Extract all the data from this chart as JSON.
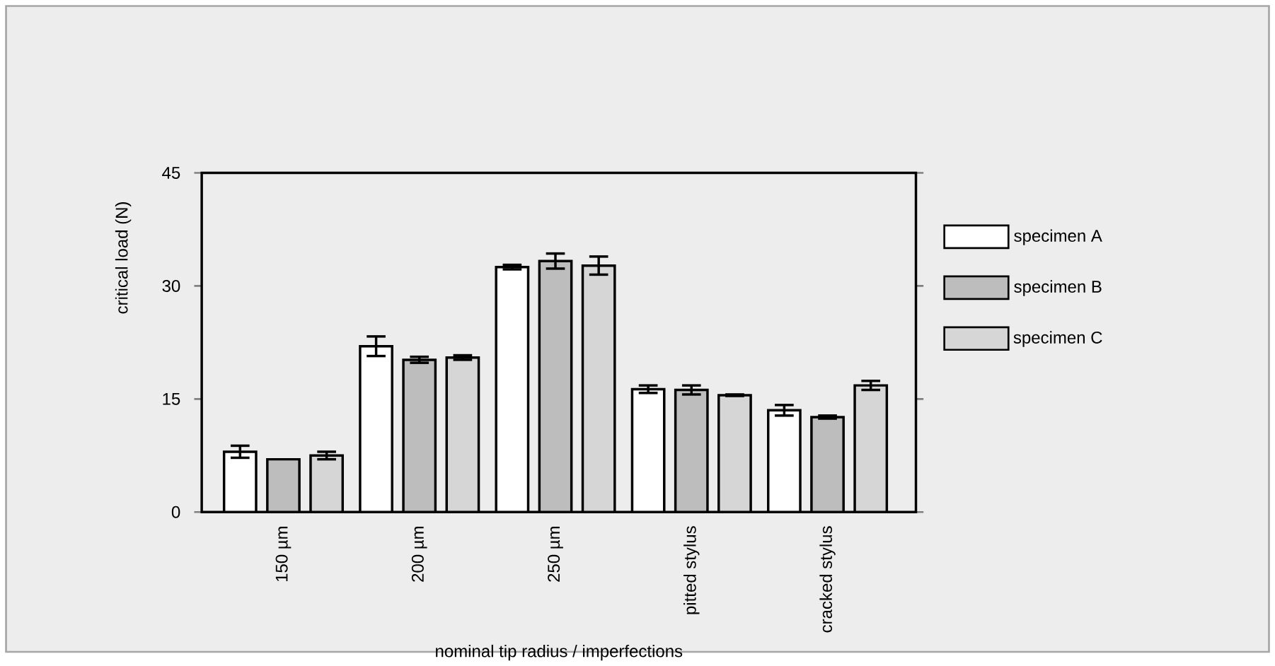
{
  "chart_data": {
    "type": "bar",
    "xlabel": "nominal tip radius / imperfections",
    "ylabel": "critical load (N)",
    "categories": [
      "150 µm",
      "200 µm",
      "250 µm",
      "pitted stylus",
      "cracked stylus"
    ],
    "series": [
      {
        "name": "specimen A",
        "color": "#ffffff",
        "values": [
          8.0,
          22.0,
          32.5,
          16.3,
          13.5
        ],
        "errors": [
          0.8,
          1.3,
          0.3,
          0.5,
          0.7
        ]
      },
      {
        "name": "specimen B",
        "color": "#bdbdbd",
        "values": [
          7.0,
          20.2,
          33.3,
          16.2,
          12.6
        ],
        "errors": [
          null,
          0.4,
          1.0,
          0.6,
          0.2
        ]
      },
      {
        "name": "specimen C",
        "color": "#d6d6d6",
        "values": [
          7.5,
          20.5,
          32.7,
          15.5,
          16.8
        ],
        "errors": [
          0.5,
          0.3,
          1.2,
          0.1,
          0.6
        ]
      }
    ],
    "ylim": [
      0,
      45
    ],
    "yticks": [
      0,
      15,
      30,
      45
    ],
    "legend": "right",
    "grid": false
  }
}
